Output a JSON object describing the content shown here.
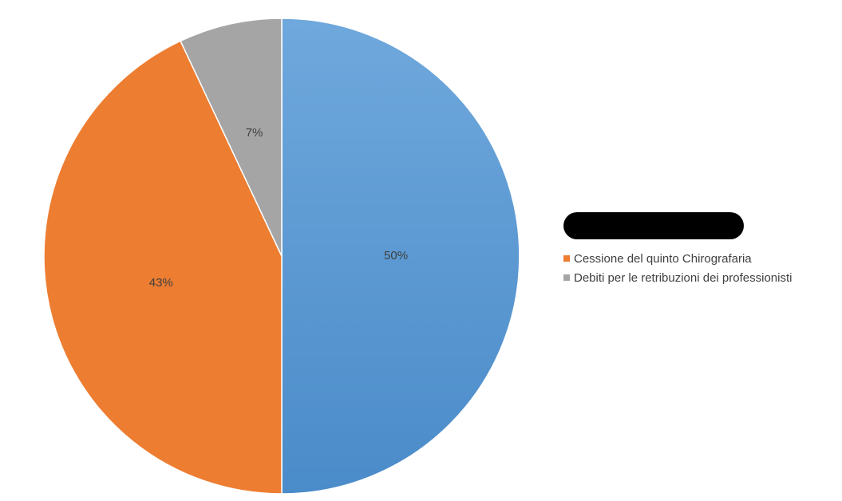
{
  "chart_data": {
    "type": "pie",
    "title": "",
    "slices": [
      {
        "name": "",
        "value": 50,
        "label": "50%",
        "color": "#5b9bd5"
      },
      {
        "name": "Cessione del quinto Chirografaria",
        "value": 43,
        "label": "43%",
        "color": "#ed7d31"
      },
      {
        "name": "Debiti per le retribuzioni dei professionisti",
        "value": 7,
        "label": "7%",
        "color": "#a5a5a5"
      }
    ],
    "legend": {
      "placement": "right",
      "first_entry_redacted": true
    },
    "start_angle_deg": 0,
    "direction": "clockwise"
  }
}
